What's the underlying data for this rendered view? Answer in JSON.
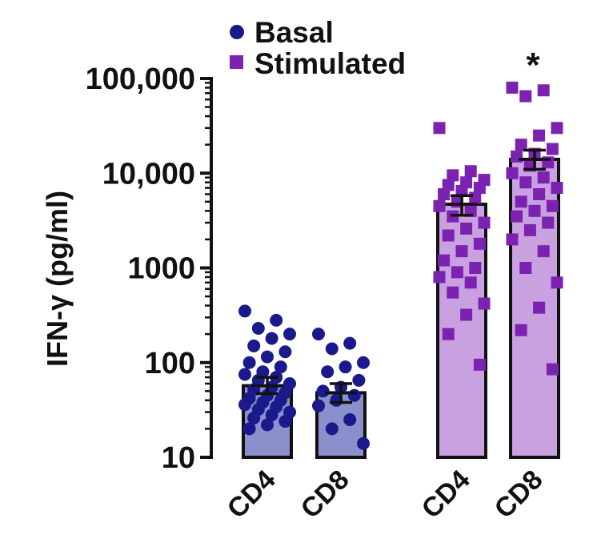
{
  "chart_data": {
    "type": "bar",
    "title": "",
    "xlabel": "",
    "ylabel": "IFN-γ (pg/ml)",
    "yscale": "log",
    "ylim": [
      10,
      100000
    ],
    "ytick_values": [
      10,
      100,
      1000,
      10000,
      100000
    ],
    "ytick_labels": [
      "10",
      "100",
      "1000",
      "10,000",
      "100,000"
    ],
    "categories": [
      "CD4",
      "CD8",
      "CD4",
      "CD8"
    ],
    "legend_position": "top-left",
    "annotation": "*",
    "groups": [
      {
        "name": "Basal",
        "color": "#1a1a8c",
        "bar_color": "#8a90cc",
        "marker": "circle",
        "bars": [
          {
            "category": "CD4",
            "mean": 57,
            "sem": [
              47,
              70
            ],
            "points": [
              350,
              280,
              230,
              200,
              180,
              150,
              130,
              115,
              100,
              90,
              80,
              75,
              70,
              65,
              60,
              55,
              52,
              48,
              45,
              42,
              40,
              38,
              36,
              34,
              32,
              30,
              28,
              26,
              24,
              22,
              20
            ]
          },
          {
            "category": "CD8",
            "mean": 48,
            "sem": [
              38,
              60
            ],
            "points": [
              200,
              160,
              140,
              100,
              90,
              80,
              65,
              55,
              50,
              45,
              40,
              35,
              25,
              20,
              14
            ]
          }
        ]
      },
      {
        "name": "Stimulated",
        "color": "#7b22b0",
        "bar_color": "#c9a0e0",
        "marker": "square",
        "bars": [
          {
            "category": "CD4",
            "mean": 4700,
            "sem": [
              3600,
              5800
            ],
            "points": [
              30000,
              10500,
              9500,
              8500,
              8000,
              7500,
              7000,
              6500,
              6000,
              5500,
              5000,
              4500,
              4000,
              3500,
              3000,
              2600,
              2200,
              1800,
              1500,
              1200,
              1000,
              900,
              800,
              700,
              550,
              420,
              320,
              200,
              95
            ]
          },
          {
            "category": "CD8",
            "mean": 14000,
            "sem": [
              11000,
              17500
            ],
            "points": [
              80000,
              75000,
              65000,
              30000,
              25000,
              20000,
              18000,
              16000,
              15000,
              13000,
              12000,
              10000,
              9000,
              8000,
              7000,
              6000,
              5000,
              4500,
              4000,
              3500,
              3000,
              2500,
              2000,
              1500,
              1000,
              700,
              380,
              220,
              85
            ]
          }
        ]
      }
    ]
  }
}
